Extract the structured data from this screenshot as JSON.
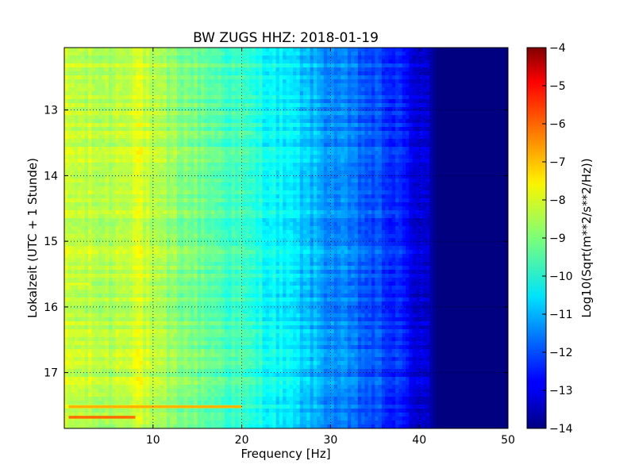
{
  "chart_data": {
    "type": "heatmap",
    "title": "BW ZUGS HHZ: 2018-01-19",
    "xlabel": "Frequency [Hz]",
    "ylabel": "Lokalzeit (UTC + 1 Stunde)",
    "xlim": [
      0,
      50
    ],
    "ylim": [
      17.85,
      12.05
    ],
    "y_inverted": true,
    "xticks": [
      10,
      20,
      30,
      40,
      50
    ],
    "yticks": [
      13,
      14,
      15,
      16,
      17
    ],
    "grid": true,
    "colormap": "jet",
    "colorbar": {
      "label": "Log10(Sqrt(m**2/s**2/Hz))",
      "range": [
        -14,
        -4
      ],
      "ticks": [
        -4,
        -5,
        -6,
        -7,
        -8,
        -9,
        -10,
        -11,
        -12,
        -13,
        -14
      ]
    },
    "frequency_profile": {
      "freq_hz": [
        0,
        5,
        8.5,
        10,
        15,
        20,
        25,
        30,
        35,
        38,
        41,
        42,
        50
      ],
      "log_psd": [
        -8.3,
        -8.5,
        -8.0,
        -8.6,
        -9.1,
        -9.7,
        -10.4,
        -11.3,
        -12.0,
        -12.5,
        -13.4,
        -14,
        -14
      ]
    },
    "highlights": [
      {
        "time_h": 17.52,
        "freq_range_hz": [
          0.5,
          20
        ],
        "log_psd": -7.0
      },
      {
        "time_h": 17.68,
        "freq_range_hz": [
          0.5,
          8
        ],
        "log_psd": -6.3
      },
      {
        "time_h": 15.65,
        "freq_range_hz": [
          0,
          3
        ],
        "log_psd": -8.0
      }
    ]
  }
}
